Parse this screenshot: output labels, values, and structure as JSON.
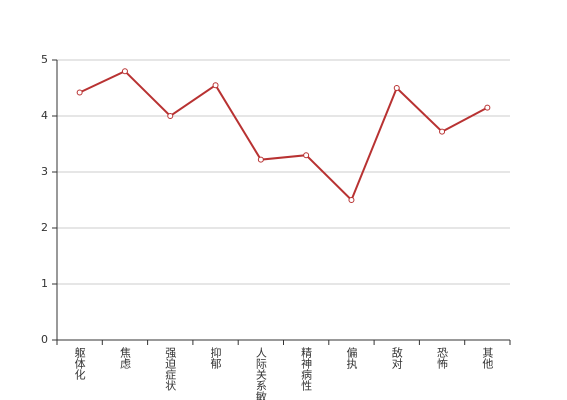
{
  "chart_data": {
    "type": "line",
    "categories": [
      "躯体化",
      "焦虑",
      "强迫症状",
      "抑郁",
      "人际关系敏感",
      "精神病性",
      "偏执",
      "敌对",
      "恐怖",
      "其他"
    ],
    "series": [
      {
        "color": "#b83232",
        "values": [
          4.42,
          4.8,
          4.0,
          4.55,
          3.22,
          3.3,
          2.5,
          4.5,
          3.72,
          4.15
        ]
      }
    ],
    "ylim": [
      0,
      5
    ],
    "yticks": [
      0,
      1,
      2,
      3,
      4,
      5
    ],
    "grid": true
  }
}
